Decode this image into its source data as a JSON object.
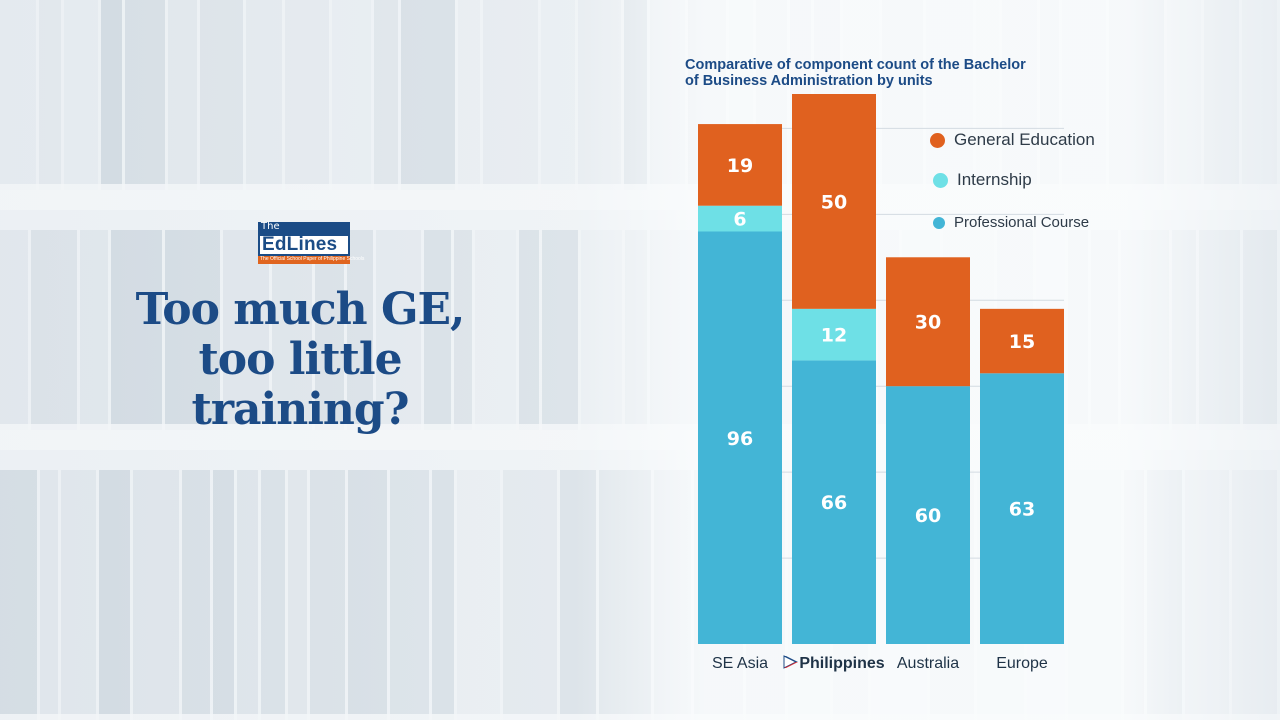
{
  "headline": {
    "line1": "Too much GE,",
    "line2": "too little training?"
  },
  "logo": {
    "the": "The",
    "name": "EdLines",
    "tagline": "The Official School Paper of Philippine Schools"
  },
  "colors": {
    "general_education": "#e0611f",
    "internship": "#6ee0e6",
    "professional_course": "#43b5d6",
    "title": "#1c4b86"
  },
  "chart_data": {
    "type": "bar",
    "stacked": true,
    "title": "Comparative of component count of the Bachelor of Business Administration by units",
    "title_lines": [
      "Comparative of component count of the Bachelor",
      "of Business Administration by units"
    ],
    "categories": [
      "SE Asia",
      "Philippines",
      "Australia",
      "Europe"
    ],
    "highlight_category": "Philippines",
    "series": [
      {
        "name": "Professional Course",
        "values": [
          96,
          66,
          60,
          63
        ],
        "color": "#43b5d6"
      },
      {
        "name": "Internship",
        "values": [
          6,
          12,
          0,
          0
        ],
        "color": "#6ee0e6"
      },
      {
        "name": "General Education",
        "values": [
          19,
          50,
          30,
          15
        ],
        "color": "#e0611f"
      }
    ],
    "legend": [
      "General Education",
      "Internship",
      "Professional Course"
    ],
    "legend_position": "top-right",
    "ylim": [
      0,
      128
    ],
    "grid": true
  }
}
